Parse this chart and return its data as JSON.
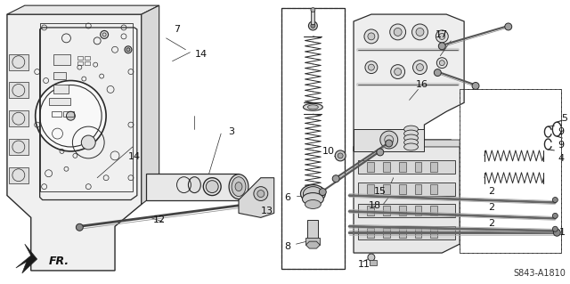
{
  "background_color": "#ffffff",
  "line_color": "#2a2a2a",
  "text_color": "#111111",
  "diagram_code": "S843-A1810",
  "fr_label": "FR.",
  "font_size_label": 8,
  "font_size_code": 7,
  "figsize": [
    6.4,
    3.19
  ],
  "dpi": 100
}
